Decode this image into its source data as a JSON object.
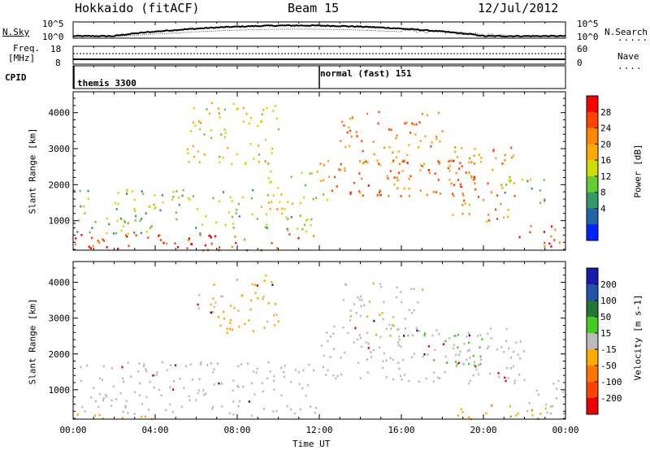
{
  "header": {
    "title": "Hokkaido (fitACF)",
    "beam": "Beam 15",
    "date": "12/Jul/2012"
  },
  "top_panels": {
    "nsky_label": "N.Sky",
    "nsky_tick_top": "10^5",
    "nsky_tick_bottom": "10^0",
    "nsearch_label": "N.Search",
    "nsearch_tick_top": "10^5",
    "nsearch_tick_bottom": "10^0",
    "freq_label_1": "Freq.",
    "freq_label_2": "[MHz]",
    "freq_tick_top": "18",
    "freq_tick_bottom": "8",
    "nave_label": "Nave",
    "nave_tick_top": "60",
    "nave_tick_bottom": "0",
    "cpid_label": "CPID",
    "cpid_modes": [
      {
        "name": "themis 3300",
        "start": "00:00"
      },
      {
        "name": "normal (fast) 151",
        "start": "12:00"
      }
    ]
  },
  "power_panel": {
    "ylabel": "Slant Range [km]",
    "colorbar_label": "Power [dB]",
    "colorbar_ticks": [
      "28",
      "24",
      "20",
      "16",
      "12",
      "8",
      "4"
    ],
    "colorbar_colors": [
      "#ff0000",
      "#ff4400",
      "#ff8800",
      "#ffaa00",
      "#ccdd00",
      "#66cc33",
      "#339966",
      "#2266aa",
      "#0022ff"
    ]
  },
  "velocity_panel": {
    "ylabel": "Slant Range [km]",
    "colorbar_label": "Velocity [m s-1]",
    "colorbar_ticks": [
      "200",
      "100",
      "50",
      "15",
      "-15",
      "-50",
      "-100",
      "-200"
    ],
    "colorbar_colors": [
      "#1a1aaa",
      "#2255aa",
      "#227733",
      "#44cc22",
      "#bbbbbb",
      "#ffaa00",
      "#ff7700",
      "#ff4400",
      "#ee0000"
    ]
  },
  "chart_data": [
    {
      "type": "heatmap",
      "title": "Power",
      "ylabel": "Slant Range [km]",
      "xlabel": "Time UT",
      "x_ticks": [
        "00:00",
        "04:00",
        "08:00",
        "12:00",
        "16:00",
        "20:00",
        "00:00"
      ],
      "y_ticks": [
        1000,
        2000,
        3000,
        4000
      ],
      "ylim": [
        180,
        4580
      ],
      "xlim_hours": [
        0,
        24
      ],
      "colorbar": {
        "label": "Power [dB]",
        "ticks": [
          4,
          8,
          12,
          16,
          20,
          24,
          28
        ],
        "range": [
          0,
          30
        ]
      },
      "echo_regions": [
        {
          "t0": 0.0,
          "t1": 11.8,
          "r0": 200,
          "r1": 650,
          "level": 27
        },
        {
          "t0": 0.0,
          "t1": 11.8,
          "r0": 650,
          "r1": 1300,
          "level": 12
        },
        {
          "t0": 0.0,
          "t1": 9.0,
          "r0": 1300,
          "r1": 1900,
          "level": 12
        },
        {
          "t0": 5.5,
          "t1": 10.0,
          "r0": 2600,
          "r1": 4300,
          "level": 16
        },
        {
          "t0": 9.0,
          "t1": 12.5,
          "r0": 1200,
          "r1": 2400,
          "level": 16
        },
        {
          "t0": 12.0,
          "t1": 20.0,
          "r0": 1700,
          "r1": 2700,
          "level": 24
        },
        {
          "t0": 13.0,
          "t1": 18.0,
          "r0": 2500,
          "r1": 4100,
          "level": 22
        },
        {
          "t0": 18.0,
          "t1": 21.5,
          "r0": 1000,
          "r1": 3100,
          "level": 22
        },
        {
          "t0": 21.5,
          "t1": 24.0,
          "r0": 300,
          "r1": 900,
          "level": 26
        },
        {
          "t0": 21.0,
          "t1": 23.0,
          "r0": 1500,
          "r1": 2200,
          "level": 12
        }
      ]
    },
    {
      "type": "heatmap",
      "title": "Velocity",
      "ylabel": "Slant Range [km]",
      "xlabel": "Time UT",
      "x_ticks": [
        "00:00",
        "04:00",
        "08:00",
        "12:00",
        "16:00",
        "20:00",
        "00:00"
      ],
      "y_ticks": [
        1000,
        2000,
        3000,
        4000
      ],
      "ylim": [
        180,
        4580
      ],
      "xlim_hours": [
        0,
        24
      ],
      "colorbar": {
        "label": "Velocity [m s-1]",
        "ticks": [
          -200,
          -100,
          -50,
          -15,
          15,
          50,
          100,
          200
        ],
        "range": [
          -250,
          250
        ]
      },
      "echo_regions": [
        {
          "t0": 0.0,
          "t1": 11.8,
          "r0": 300,
          "r1": 1800,
          "level": 0
        },
        {
          "t0": 0.0,
          "t1": 4.0,
          "r0": 200,
          "r1": 400,
          "level": -60
        },
        {
          "t0": 6.0,
          "t1": 10.0,
          "r0": 2600,
          "r1": 4300,
          "level": -40
        },
        {
          "t0": 12.0,
          "t1": 22.0,
          "r0": 1200,
          "r1": 2800,
          "level": 0
        },
        {
          "t0": 17.0,
          "t1": 20.0,
          "r0": 1700,
          "r1": 2600,
          "level": 40
        },
        {
          "t0": 13.0,
          "t1": 17.0,
          "r0": 2500,
          "r1": 4000,
          "level": -20
        },
        {
          "t0": 18.5,
          "t1": 23.0,
          "r0": 200,
          "r1": 600,
          "level": -80
        },
        {
          "t0": 22.0,
          "t1": 24.0,
          "r0": 300,
          "r1": 1300,
          "level": 0
        }
      ]
    }
  ]
}
